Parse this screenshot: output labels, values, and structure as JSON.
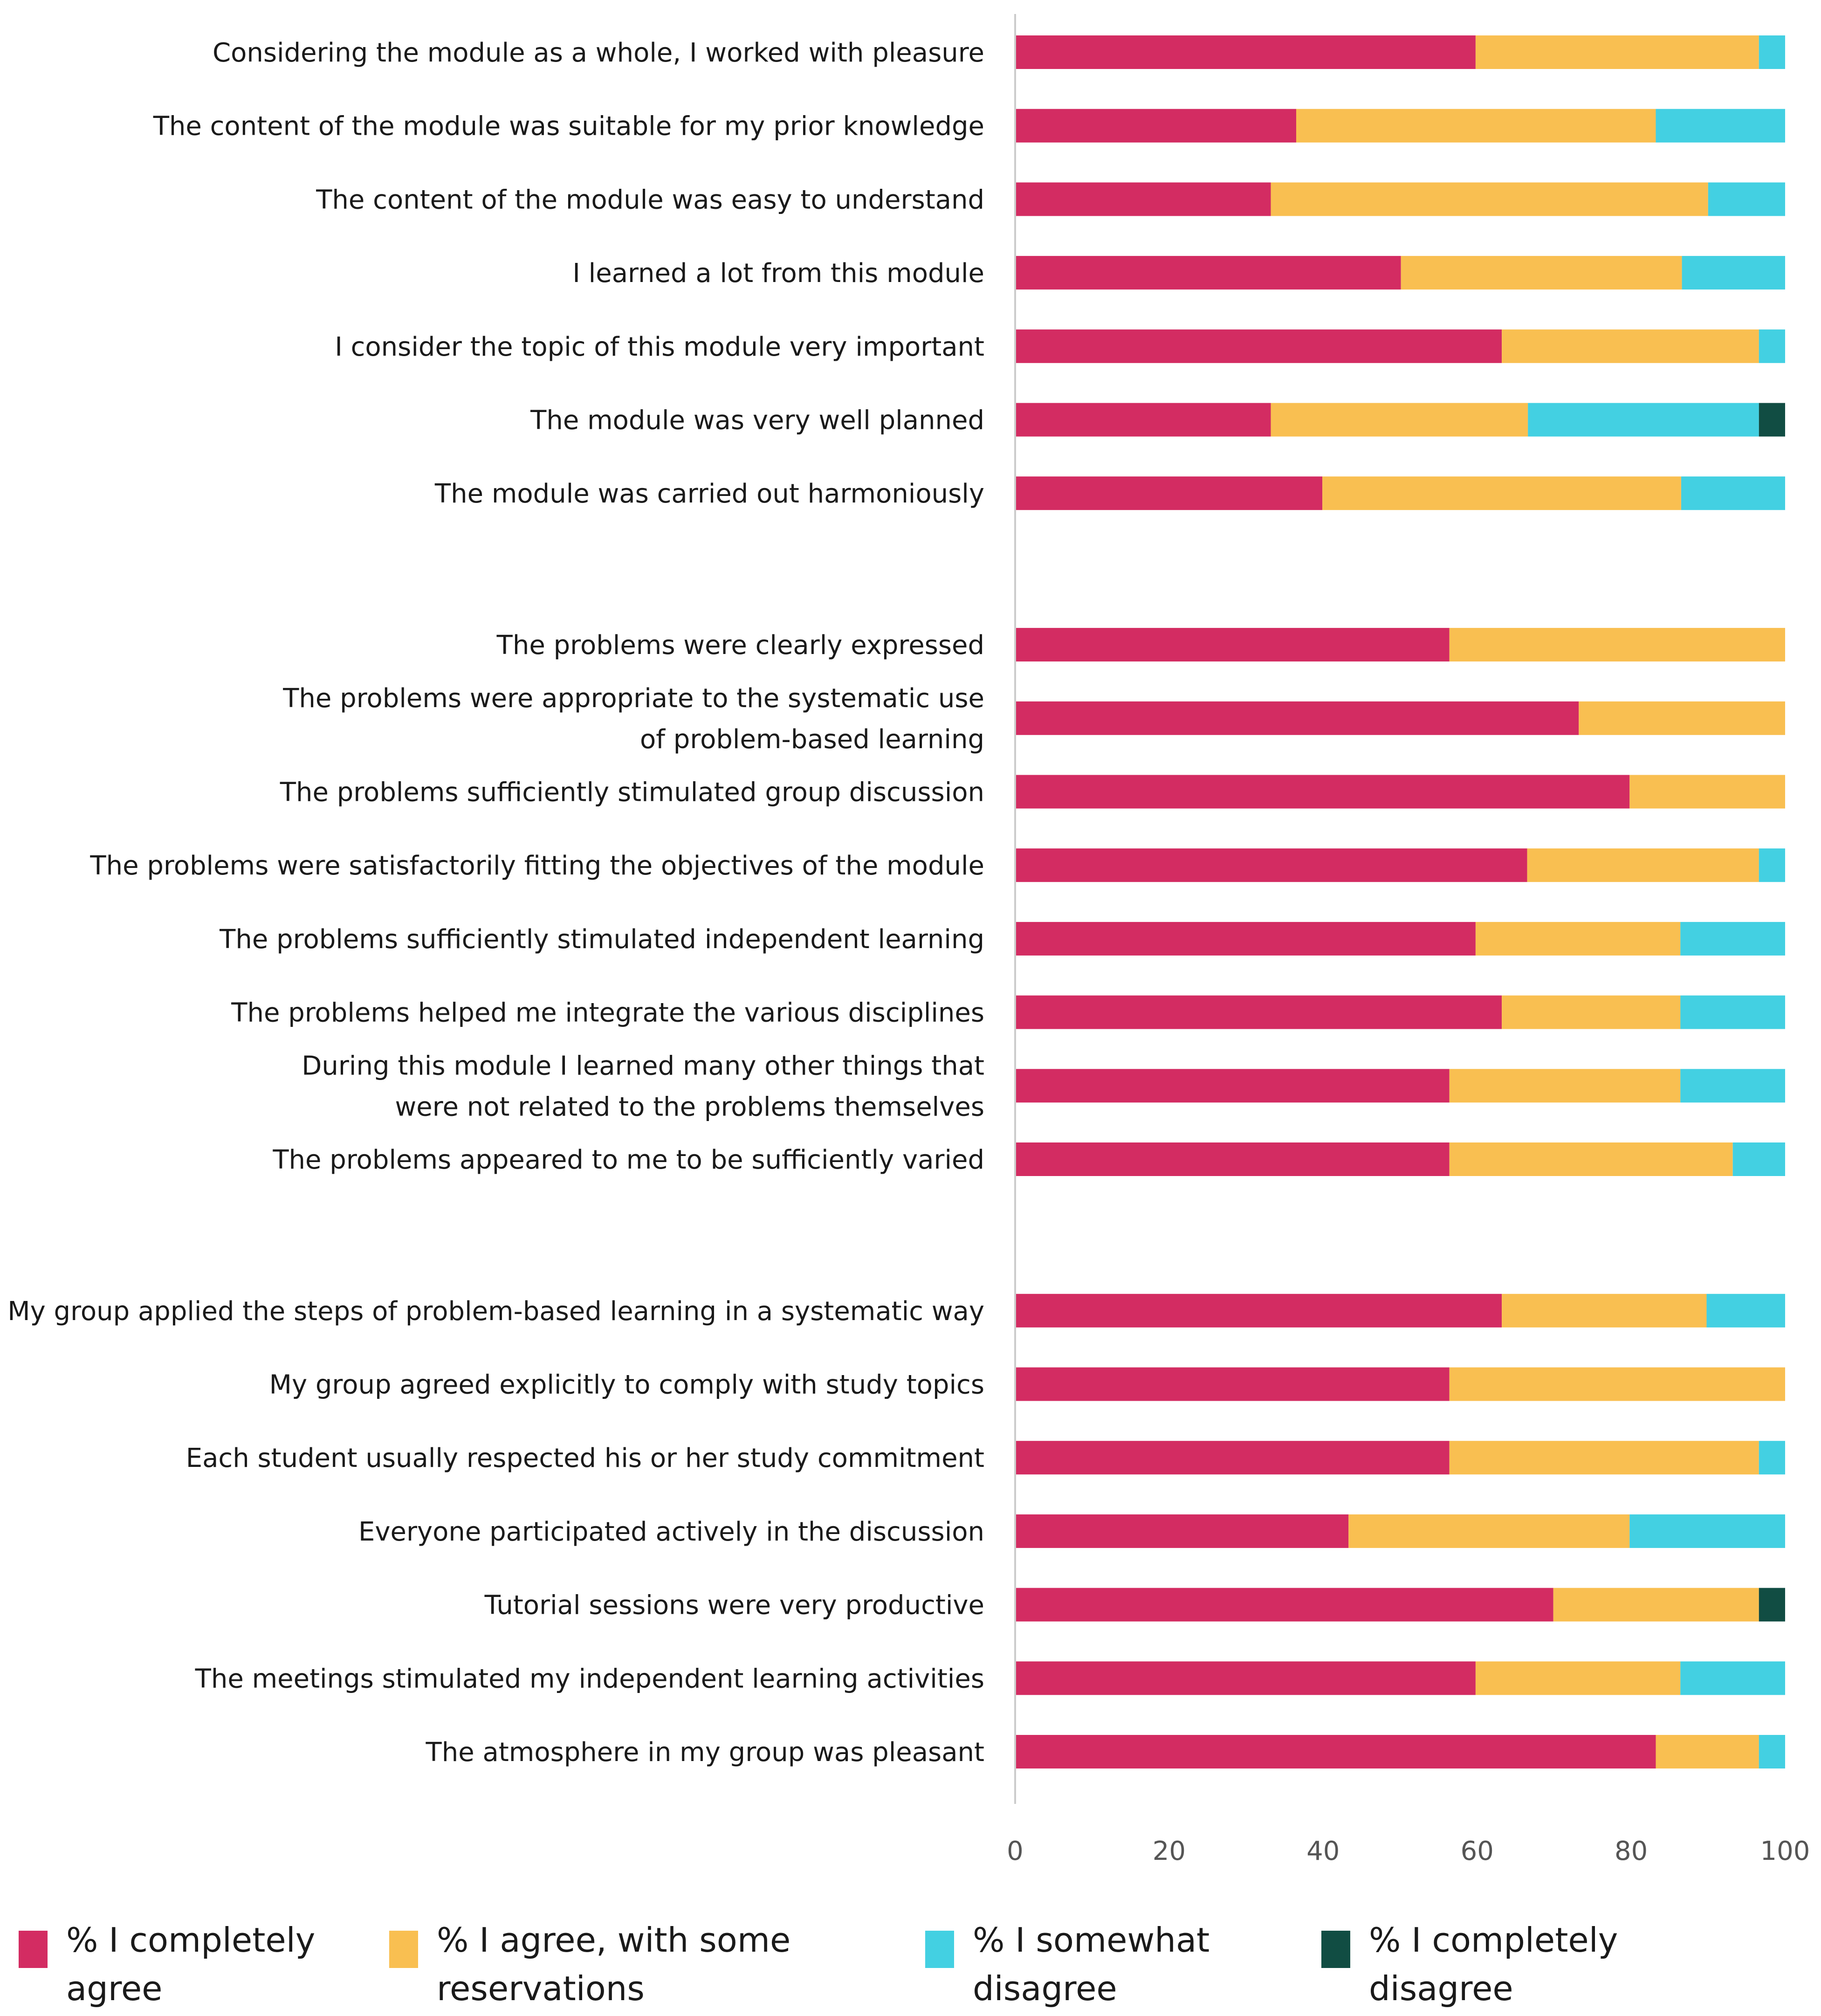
{
  "chart_data": {
    "type": "bar",
    "orientation": "horizontal",
    "stacked": true,
    "title": "",
    "xlabel": "",
    "ylabel": "",
    "xlim": [
      0,
      100
    ],
    "xticks": [
      "0",
      "20",
      "40",
      "60",
      "80",
      "100"
    ],
    "categories": [
      [
        "Considering the module as a whole, I worked with pleasure"
      ],
      [
        "The content of the module was suitable for my prior knowledge"
      ],
      [
        "The content of the module was easy to understand"
      ],
      [
        "I learned a lot from this module"
      ],
      [
        "I consider the topic of this module very important"
      ],
      [
        "The module was very well planned"
      ],
      [
        "The module was carried out harmoniously"
      ],
      [
        "The problems were clearly expressed"
      ],
      [
        "The problems were appropriate to the systematic use",
        "of problem-based learning"
      ],
      [
        "The problems sufficiently stimulated group discussion"
      ],
      [
        "The problems were satisfactorily fitting the objectives of the module"
      ],
      [
        "The problems sufficiently stimulated independent learning"
      ],
      [
        "The problems helped me integrate the various disciplines"
      ],
      [
        "During this module I learned many other things that",
        "were not related to the problems themselves"
      ],
      [
        "The problems appeared to me to be sufficiently varied"
      ],
      [
        "My group applied the steps of problem-based learning in a systematic way"
      ],
      [
        "My group agreed explicitly to comply with study topics"
      ],
      [
        "Each student usually respected his or her study commitment"
      ],
      [
        "Everyone participated actively in the discussion"
      ],
      [
        "Tutorial sessions were very productive"
      ],
      [
        "The meetings stimulated my independent learning activities"
      ],
      [
        "The atmosphere in my group was pleasant"
      ]
    ],
    "groups": [
      {
        "start": 0,
        "count": 7
      },
      {
        "start": 7,
        "count": 8
      },
      {
        "start": 15,
        "count": 7
      }
    ],
    "series": [
      {
        "name": "% I completely agree",
        "color": "#d32c62",
        "values": [
          59.8,
          36.5,
          33.2,
          50.1,
          63.2,
          33.2,
          39.9,
          56.4,
          73.2,
          79.8,
          66.5,
          59.8,
          63.2,
          56.4,
          56.4,
          63.2,
          56.4,
          56.4,
          43.3,
          69.9,
          59.8,
          83.2
        ]
      },
      {
        "name": "% I agree, with some reservations",
        "color": "#f9bf51",
        "values": [
          36.8,
          46.7,
          56.8,
          36.5,
          33.4,
          33.4,
          46.6,
          43.6,
          26.8,
          20.2,
          30.1,
          26.6,
          23.2,
          30.0,
          36.8,
          26.6,
          43.6,
          40.2,
          36.5,
          26.7,
          26.6,
          13.4
        ]
      },
      {
        "name": "% I somewhat disagree",
        "color": "#43d0e2",
        "values": [
          3.4,
          16.8,
          10.0,
          13.4,
          3.4,
          30.0,
          13.5,
          0,
          0,
          0,
          3.4,
          13.6,
          13.6,
          13.6,
          6.8,
          10.2,
          0,
          3.4,
          20.2,
          0,
          13.6,
          3.4
        ]
      },
      {
        "name": "% I completely disagree",
        "color": "#114d43",
        "values": [
          0,
          0,
          0,
          0,
          0,
          3.4,
          0,
          0,
          0,
          0,
          0,
          0,
          0,
          0,
          0,
          0,
          0,
          0,
          0,
          3.4,
          0,
          0
        ]
      }
    ],
    "legend": {
      "position": "bottom",
      "items": [
        {
          "lines": [
            "% I completely",
            "agree"
          ],
          "color": "#d32c62"
        },
        {
          "lines": [
            "% I agree, with some",
            "reservations"
          ],
          "color": "#f9bf51"
        },
        {
          "lines": [
            "% I somewhat",
            "disagree"
          ],
          "color": "#43d0e2"
        },
        {
          "lines": [
            "% I completely",
            "disagree"
          ],
          "color": "#114d43"
        }
      ]
    }
  }
}
